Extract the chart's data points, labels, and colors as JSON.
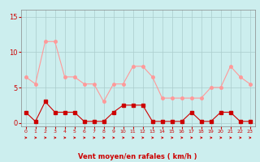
{
  "x": [
    0,
    1,
    2,
    3,
    4,
    5,
    6,
    7,
    8,
    9,
    10,
    11,
    12,
    13,
    14,
    15,
    16,
    17,
    18,
    19,
    20,
    21,
    22,
    23
  ],
  "vent_moyen": [
    1.5,
    0.2,
    3.0,
    1.5,
    1.5,
    1.5,
    0.2,
    0.2,
    0.2,
    1.5,
    2.5,
    2.5,
    2.5,
    0.2,
    0.2,
    0.2,
    0.2,
    1.5,
    0.2,
    0.2,
    1.5,
    1.5,
    0.2,
    0.2
  ],
  "rafales": [
    6.5,
    5.5,
    11.5,
    11.5,
    6.5,
    6.5,
    5.5,
    5.5,
    3.0,
    5.5,
    5.5,
    8.0,
    8.0,
    6.5,
    3.5,
    3.5,
    3.5,
    3.5,
    3.5,
    5.0,
    5.0,
    8.0,
    6.5,
    5.5
  ],
  "color_moyen": "#cc0000",
  "color_rafales": "#ff9999",
  "background_color": "#cceeee",
  "grid_color": "#aacccc",
  "xlabel": "Vent moyen/en rafales ( km/h )",
  "yticks": [
    0,
    5,
    10,
    15
  ],
  "xticks": [
    0,
    1,
    2,
    3,
    4,
    5,
    6,
    7,
    8,
    9,
    10,
    11,
    12,
    13,
    14,
    15,
    16,
    17,
    18,
    19,
    20,
    21,
    22,
    23
  ],
  "ylim": [
    -0.5,
    16
  ],
  "xlim": [
    -0.5,
    23.5
  ],
  "marker_size": 2.5,
  "line_width": 0.8,
  "xlabel_color": "#cc0000",
  "tick_color": "#cc0000",
  "axis_color": "#888888",
  "arrow_color": "#cc0000"
}
